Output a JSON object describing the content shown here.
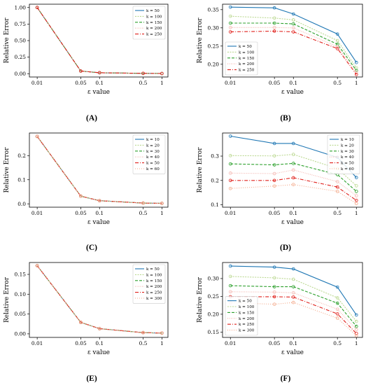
{
  "colors": [
    "#1f77b4",
    "#bcd992",
    "#2ca02c",
    "#f4b6b0",
    "#e0201b",
    "#f4a98a"
  ],
  "chart_data": [
    {
      "panel": "(A)",
      "type": "line",
      "x": [
        0.01,
        0.05,
        0.1,
        0.5,
        1
      ],
      "xticks": [
        "0.01",
        "0.05",
        "0.1",
        "0.5",
        "1"
      ],
      "xscale": "log",
      "xlim": [
        0.0075,
        1.25
      ],
      "xlabel": "ε value",
      "ylabel": "Relative Error",
      "ylim": [
        -0.05,
        1.05
      ],
      "yticks": [
        "0.00",
        "0.25",
        "0.50",
        "0.75",
        "1.00"
      ],
      "legend_position": "top-right",
      "series": [
        {
          "name": "k = 50",
          "values": [
            1.0,
            0.04,
            0.015,
            0.005,
            0.003
          ]
        },
        {
          "name": "k = 100",
          "values": [
            1.0,
            0.04,
            0.015,
            0.005,
            0.003
          ]
        },
        {
          "name": "k = 150",
          "values": [
            1.0,
            0.04,
            0.015,
            0.005,
            0.003
          ]
        },
        {
          "name": "k = 200",
          "values": [
            1.0,
            0.04,
            0.015,
            0.005,
            0.003
          ]
        },
        {
          "name": "k = 250",
          "values": [
            1.0,
            0.04,
            0.015,
            0.005,
            0.003
          ]
        }
      ]
    },
    {
      "panel": "(B)",
      "type": "line",
      "x": [
        0.01,
        0.05,
        0.1,
        0.5,
        1
      ],
      "xticks": [
        "0.01",
        "0.05",
        "0.1",
        "0.5",
        "1"
      ],
      "xscale": "log",
      "xlim": [
        0.0075,
        1.25
      ],
      "xlabel": "ε value",
      "ylabel": "Relative Error",
      "ylim": [
        0.165,
        0.365
      ],
      "yticks": [
        "0.20",
        "0.25",
        "0.30",
        "0.35"
      ],
      "legend_position": "bottom-left",
      "series": [
        {
          "name": "k = 50",
          "values": [
            0.357,
            0.355,
            0.338,
            0.283,
            0.205
          ]
        },
        {
          "name": "k = 100",
          "values": [
            0.332,
            0.327,
            0.322,
            0.265,
            0.19
          ]
        },
        {
          "name": "k = 150",
          "values": [
            0.313,
            0.313,
            0.311,
            0.255,
            0.183
          ]
        },
        {
          "name": "k = 200",
          "values": [
            0.301,
            0.301,
            0.3,
            0.248,
            0.178
          ]
        },
        {
          "name": "k = 250",
          "values": [
            0.289,
            0.291,
            0.289,
            0.243,
            0.172
          ]
        }
      ]
    },
    {
      "panel": "(C)",
      "type": "line",
      "x": [
        0.01,
        0.05,
        0.1,
        0.5,
        1
      ],
      "xticks": [
        "0.01",
        "0.05",
        "0.1",
        "0.5",
        "1"
      ],
      "xscale": "log",
      "xlim": [
        0.0075,
        1.25
      ],
      "xlabel": "ε value",
      "ylabel": "Relative Error",
      "ylim": [
        -0.014,
        0.294
      ],
      "yticks": [
        "0.0",
        "0.1",
        "0.2"
      ],
      "legend_position": "top-right",
      "series": [
        {
          "name": "k = 10",
          "values": [
            0.28,
            0.032,
            0.013,
            0.003,
            0.002
          ]
        },
        {
          "name": "k = 20",
          "values": [
            0.28,
            0.032,
            0.013,
            0.003,
            0.002
          ]
        },
        {
          "name": "k = 30",
          "values": [
            0.28,
            0.032,
            0.013,
            0.003,
            0.002
          ]
        },
        {
          "name": "k = 40",
          "values": [
            0.28,
            0.032,
            0.013,
            0.003,
            0.002
          ]
        },
        {
          "name": "k = 50",
          "values": [
            0.28,
            0.032,
            0.013,
            0.003,
            0.002
          ]
        },
        {
          "name": "k = 60",
          "values": [
            0.28,
            0.032,
            0.013,
            0.003,
            0.002
          ]
        }
      ]
    },
    {
      "panel": "(D)",
      "type": "line",
      "x": [
        0.01,
        0.05,
        0.1,
        0.5,
        1
      ],
      "xticks": [
        "0.01",
        "0.05",
        "0.1",
        "0.5",
        "1"
      ],
      "xscale": "log",
      "xlim": [
        0.0075,
        1.25
      ],
      "xlabel": "ε value",
      "ylabel": "Relative Error",
      "ylim": [
        0.09,
        0.395
      ],
      "yticks": [
        "0.1",
        "0.2",
        "0.3"
      ],
      "legend_position": "right",
      "series": [
        {
          "name": "k = 10",
          "values": [
            0.382,
            0.352,
            0.352,
            0.295,
            0.212
          ]
        },
        {
          "name": "k = 20",
          "values": [
            0.302,
            0.301,
            0.307,
            0.249,
            0.178
          ]
        },
        {
          "name": "k = 30",
          "values": [
            0.268,
            0.264,
            0.27,
            0.224,
            0.155
          ]
        },
        {
          "name": "k = 40",
          "values": [
            0.23,
            0.228,
            0.243,
            0.195,
            0.137
          ]
        },
        {
          "name": "k = 50",
          "values": [
            0.2,
            0.2,
            0.211,
            0.173,
            0.118
          ]
        },
        {
          "name": "k = 60",
          "values": [
            0.167,
            0.177,
            0.183,
            0.155,
            0.105
          ]
        }
      ]
    },
    {
      "panel": "(E)",
      "type": "line",
      "x": [
        0.01,
        0.05,
        0.1,
        0.5,
        1
      ],
      "xticks": [
        "0.01",
        "0.05",
        "0.1",
        "0.5",
        "1"
      ],
      "xscale": "log",
      "xlim": [
        0.0075,
        1.25
      ],
      "xlabel": "ε value",
      "ylabel": "Relative Error",
      "ylim": [
        -0.009,
        0.18
      ],
      "yticks": [
        "0.00",
        "0.05",
        "0.10",
        "0.15"
      ],
      "legend_position": "top-right",
      "series": [
        {
          "name": "k = 50",
          "values": [
            0.172,
            0.029,
            0.013,
            0.003,
            0.002
          ]
        },
        {
          "name": "k = 100",
          "values": [
            0.172,
            0.029,
            0.013,
            0.003,
            0.002
          ]
        },
        {
          "name": "k = 150",
          "values": [
            0.172,
            0.029,
            0.013,
            0.003,
            0.002
          ]
        },
        {
          "name": "k = 200",
          "values": [
            0.172,
            0.029,
            0.013,
            0.003,
            0.002
          ]
        },
        {
          "name": "k = 250",
          "values": [
            0.172,
            0.029,
            0.013,
            0.003,
            0.002
          ]
        },
        {
          "name": "k = 300",
          "values": [
            0.172,
            0.029,
            0.013,
            0.003,
            0.002
          ]
        }
      ]
    },
    {
      "panel": "(F)",
      "type": "line",
      "x": [
        0.01,
        0.05,
        0.1,
        0.5,
        1
      ],
      "xticks": [
        "0.01",
        "0.05",
        "0.1",
        "0.5",
        "1"
      ],
      "xscale": "log",
      "xlim": [
        0.0075,
        1.25
      ],
      "xlabel": "ε value",
      "ylabel": "Relative Error",
      "ylim": [
        0.135,
        0.345
      ],
      "yticks": [
        "0.15",
        "0.20",
        "0.25",
        "0.30"
      ],
      "legend_position": "bottom-left",
      "series": [
        {
          "name": "k = 50",
          "values": [
            0.335,
            0.332,
            0.327,
            0.276,
            0.198
          ]
        },
        {
          "name": "k = 100",
          "values": [
            0.306,
            0.302,
            0.298,
            0.246,
            0.18
          ]
        },
        {
          "name": "k = 150",
          "values": [
            0.28,
            0.277,
            0.277,
            0.231,
            0.166
          ]
        },
        {
          "name": "k = 200",
          "values": [
            0.263,
            0.262,
            0.26,
            0.214,
            0.157
          ]
        },
        {
          "name": "k = 250",
          "values": [
            0.249,
            0.249,
            0.248,
            0.201,
            0.146
          ]
        },
        {
          "name": "k = 300",
          "values": [
            0.232,
            0.228,
            0.233,
            0.189,
            0.14
          ]
        }
      ]
    }
  ]
}
